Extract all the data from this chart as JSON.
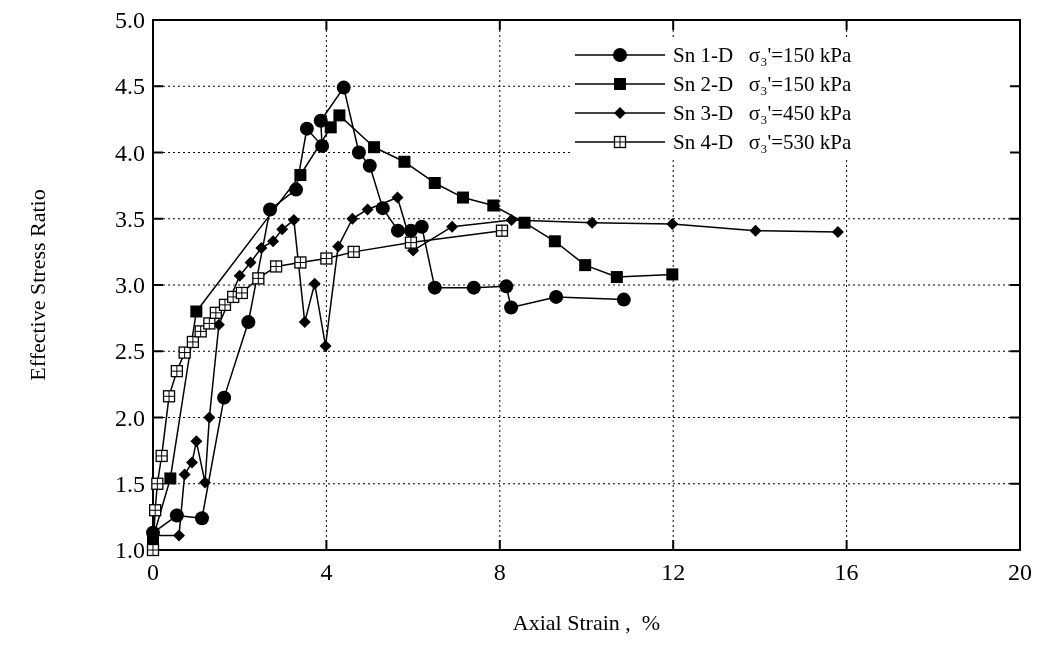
{
  "chart_data": {
    "type": "line",
    "xlabel": "Axial Strain ,  %",
    "ylabel": "Effective Stress Ratio",
    "xlim": [
      0,
      20
    ],
    "ylim": [
      1,
      5
    ],
    "xticks": [
      0,
      4,
      8,
      12,
      16,
      20
    ],
    "yticks": [
      {
        "value": 1,
        "label": "1.0"
      },
      {
        "value": 1.5,
        "label": "1.5"
      },
      {
        "value": 2,
        "label": "2.0"
      },
      {
        "value": 2.5,
        "label": "2.5"
      },
      {
        "value": 3,
        "label": "3.0"
      },
      {
        "value": 3.5,
        "label": "3.5"
      },
      {
        "value": 4,
        "label": "4.0"
      },
      {
        "value": 4.5,
        "label": "4.5"
      },
      {
        "value": 5,
        "label": "5.0"
      }
    ],
    "grid": true,
    "legend": "top right",
    "line_style": "solid",
    "series": [
      {
        "name": "Sn 1-D   σ₃'=150 kPa",
        "color": "#000000",
        "marker": "circle",
        "x": [
          0,
          0.55,
          1.13,
          1.64,
          2.2,
          2.7,
          3.3,
          3.55,
          3.9,
          3.87,
          4.4,
          4.75,
          5.0,
          5.3,
          5.65,
          5.95,
          6.2,
          6.5,
          7.4,
          8.15,
          8.26,
          9.3,
          10.86
        ],
        "values": [
          1.13,
          1.26,
          1.24,
          2.15,
          2.72,
          3.57,
          3.72,
          4.18,
          4.05,
          4.24,
          4.49,
          4.0,
          3.9,
          3.58,
          3.41,
          3.41,
          3.44,
          2.98,
          2.98,
          2.99,
          2.83,
          2.91,
          2.89
        ]
      },
      {
        "name": "Sn 2-D   σ₃'=150 kPa",
        "color": "#000000",
        "marker": "square",
        "x": [
          0,
          0.4,
          1.0,
          3.4,
          4.1,
          4.3,
          5.1,
          5.8,
          6.5,
          7.15,
          7.85,
          8.57,
          9.27,
          9.97,
          10.7,
          11.98
        ],
        "values": [
          1.09,
          1.54,
          2.8,
          3.83,
          4.19,
          4.28,
          4.04,
          3.93,
          3.77,
          3.66,
          3.6,
          3.47,
          3.33,
          3.15,
          3.06,
          3.08
        ]
      },
      {
        "name": "Sn 3-D   σ₃'=450 kPa",
        "color": "#000000",
        "marker": "diamond",
        "x": [
          0,
          0.6,
          0.73,
          0.9,
          1.0,
          1.2,
          1.3,
          1.52,
          2.0,
          2.25,
          2.5,
          2.77,
          2.98,
          3.25,
          3.5,
          3.73,
          3.98,
          4.27,
          4.6,
          4.95,
          5.64,
          6.0,
          6.9,
          8.27,
          10.13,
          11.98,
          13.9,
          15.8
        ],
        "values": [
          1.11,
          1.11,
          1.57,
          1.66,
          1.82,
          1.51,
          2.0,
          2.7,
          3.07,
          3.17,
          3.28,
          3.33,
          3.42,
          3.49,
          2.72,
          3.01,
          2.54,
          3.29,
          3.5,
          3.57,
          3.66,
          3.26,
          3.44,
          3.49,
          3.47,
          3.46,
          3.41,
          3.4
        ]
      },
      {
        "name": "Sn 4-D   σ₃'=530 kPa",
        "color": "#000000",
        "marker": "square",
        "x": [
          0,
          0.05,
          0.1,
          0.2,
          0.37,
          0.55,
          0.73,
          0.92,
          1.1,
          1.3,
          1.45,
          1.66,
          1.85,
          2.05,
          2.43,
          2.84,
          3.4,
          4.0,
          4.63,
          5.95,
          8.05
        ],
        "values": [
          1.0,
          1.3,
          1.5,
          1.71,
          2.16,
          2.35,
          2.49,
          2.57,
          2.65,
          2.71,
          2.79,
          2.85,
          2.91,
          2.94,
          3.05,
          3.14,
          3.17,
          3.2,
          3.25,
          3.32,
          3.41
        ]
      }
    ]
  }
}
